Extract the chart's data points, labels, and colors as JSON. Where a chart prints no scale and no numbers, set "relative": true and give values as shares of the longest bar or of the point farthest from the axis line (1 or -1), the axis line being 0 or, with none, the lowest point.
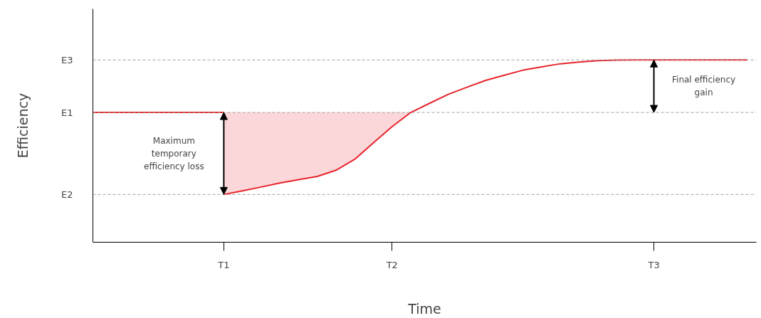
{
  "chart_data": {
    "type": "line",
    "relative": true,
    "xlabel": "Time",
    "ylabel": "Efficiency",
    "categories": [
      null,
      null,
      null,
      null,
      null,
      null,
      null,
      "T1",
      null,
      null,
      null,
      null,
      null,
      null,
      null,
      null,
      "T2",
      null,
      null,
      null,
      null,
      null,
      null,
      null,
      null,
      null,
      null,
      null,
      null,
      null,
      "T3",
      null,
      null,
      null,
      null,
      null
    ],
    "series": [
      {
        "color": "#e8242c",
        "values": [
          0.712,
          0.712,
          0.712,
          0.712,
          0.712,
          0.712,
          0.712,
          0.712,
          null,
          null,
          null,
          null,
          null,
          null,
          null,
          null,
          null,
          null,
          null,
          null,
          null,
          null,
          null,
          null,
          null,
          null,
          null,
          null,
          null,
          null,
          null,
          null,
          null,
          null,
          null,
          null
        ]
      },
      {
        "color": "#e8242c",
        "values": [
          null,
          null,
          null,
          null,
          null,
          null,
          null,
          0.262,
          0.282,
          0.303,
          0.325,
          0.343,
          0.361,
          0.395,
          0.455,
          0.545,
          0.634,
          0.712,
          0.762,
          0.811,
          0.85,
          0.888,
          0.916,
          0.944,
          0.962,
          0.979,
          0.988,
          0.996,
          0.999,
          1,
          1,
          1,
          1,
          1,
          1,
          1
        ],
        "lower": [
          null,
          null,
          null,
          null,
          null,
          null,
          null,
          0.262,
          0.282,
          0.303,
          0.325,
          0.343,
          0.361,
          0.395,
          0.455,
          0.545,
          0.634,
          0.712,
          null,
          null,
          null,
          null,
          null,
          null,
          null,
          null,
          null,
          null,
          null,
          null,
          null,
          null,
          null,
          null,
          null,
          null
        ],
        "upper": [
          null,
          null,
          null,
          null,
          null,
          null,
          null,
          0.712,
          0.712,
          0.712,
          0.712,
          0.712,
          0.712,
          0.712,
          0.712,
          0.712,
          0.712,
          0.712,
          null,
          null,
          null,
          null,
          null,
          null,
          null,
          null,
          null,
          null,
          null,
          null,
          null,
          null,
          null,
          null,
          null,
          null
        ]
      }
    ],
    "ref_lines": [
      {
        "axis": "y",
        "value": 1,
        "label": "E3",
        "color": "#a0a0a0",
        "line_style": "dashed"
      },
      {
        "axis": "y",
        "value": 0.712,
        "label": "E1",
        "color": "#a0a0a0",
        "line_style": "dashed"
      },
      {
        "axis": "y",
        "value": 0.262,
        "label": "E2",
        "color": "#a0a0a0",
        "line_style": "dashed"
      }
    ],
    "annotations": [
      "Maximum\ntemporary\nefficiency loss",
      "Final efficiency\ngain"
    ],
    "grid": false,
    "marker": "none",
    "line_style": "solid"
  }
}
